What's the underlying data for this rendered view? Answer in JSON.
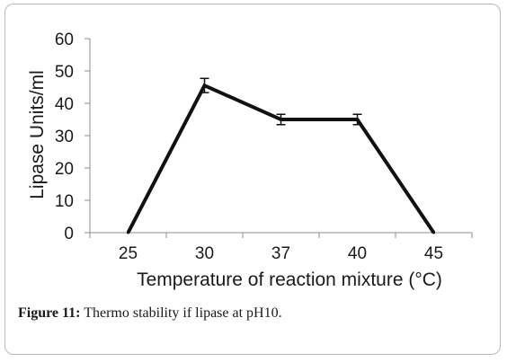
{
  "chart_data": {
    "type": "line",
    "categories": [
      "25",
      "30",
      "37",
      "40",
      "45"
    ],
    "values": [
      0,
      45.5,
      35,
      35,
      0
    ],
    "error": [
      0,
      2.2,
      1.6,
      1.6,
      0
    ],
    "ylabel": "Lipase Units/ml",
    "xlabel": "Temperature of reaction mixture (°C)",
    "ylim": [
      0,
      60
    ],
    "yticks": [
      0,
      10,
      20,
      30,
      40,
      50,
      60
    ],
    "grid": false,
    "line_color": "#111111"
  },
  "caption": {
    "label": "Figure 11:",
    "text": " Thermo stability if lipase at pH10."
  }
}
